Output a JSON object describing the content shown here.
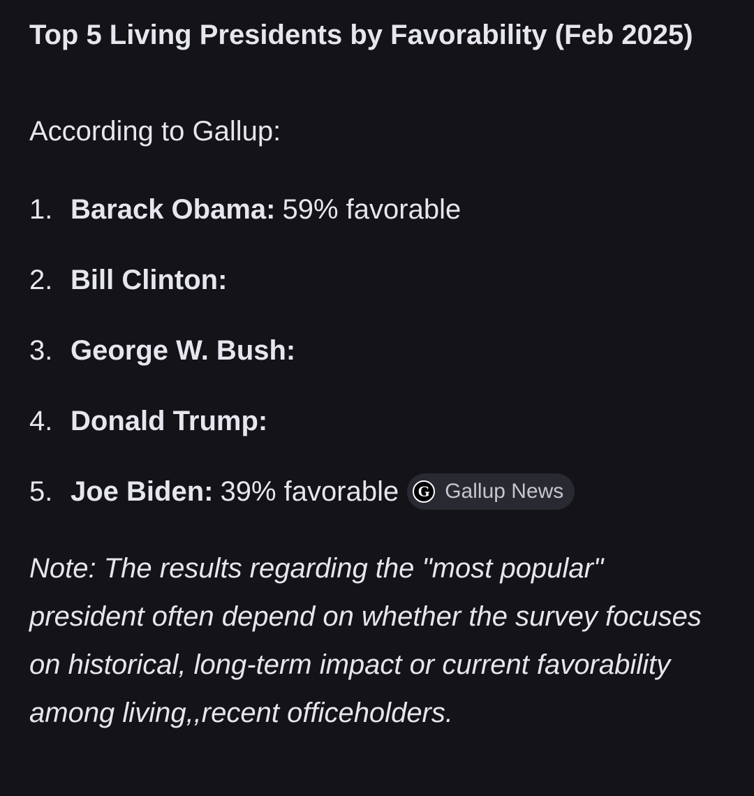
{
  "title": "Top 5 Living Presidents by Favorability (Feb 2025)",
  "intro": "According to Gallup:",
  "list": [
    {
      "marker": "1.",
      "name": "Barack Obama:",
      "detail": "59% favorable"
    },
    {
      "marker": "2.",
      "name": "Bill Clinton:"
    },
    {
      "marker": "3.",
      "name": "George W. Bush:"
    },
    {
      "marker": "4.",
      "name": "Donald Trump:"
    },
    {
      "marker": "5.",
      "name": "Joe Biden:",
      "detail": "39% favorable",
      "source": {
        "icon": "G",
        "label": "Gallup News"
      }
    }
  ],
  "note": "Note: The results regarding the \"most popular\" president often depend on whether the survey focuses on historical, long-term impact or current favorability among living,,recent officeholders."
}
